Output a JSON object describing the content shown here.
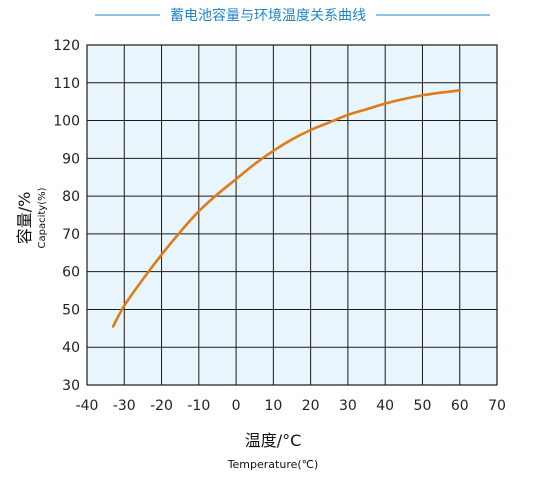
{
  "colors": {
    "title": "#1f86c8",
    "title_rule": "#1f86c8",
    "plot_background": "#e9f5fc",
    "grid": "#1a1a1a",
    "curve": "#e07b1a",
    "text": "#222222"
  },
  "chart_data": {
    "type": "line",
    "title": "蓄电池容量与环境温度关系曲线",
    "ylabel": "容量/%",
    "ylabel_sub": "Capacity(%)",
    "xlabel": "温度/°C",
    "xlabel_sub": "Temperature(℃)",
    "xlim": [
      -40,
      70
    ],
    "ylim": [
      30,
      120
    ],
    "x_ticks": [
      "-40",
      "-30",
      "-20",
      "-10",
      "0",
      "10",
      "20",
      "30",
      "40",
      "50",
      "60",
      "70"
    ],
    "y_ticks": [
      "30",
      "40",
      "50",
      "60",
      "70",
      "80",
      "90",
      "100",
      "110",
      "120"
    ],
    "grid": true,
    "series": [
      {
        "x": [
          -33,
          -30,
          -25,
          -20,
          -15,
          -10,
          -5,
          0,
          5,
          10,
          15,
          20,
          25,
          30,
          35,
          40,
          45,
          50,
          55,
          60
        ],
        "y": [
          45.5,
          51,
          58,
          64.5,
          70.5,
          76,
          80.5,
          84.5,
          88.5,
          92,
          95,
          97.5,
          99.5,
          101.5,
          103,
          104.5,
          105.7,
          106.7,
          107.4,
          108
        ]
      }
    ]
  }
}
